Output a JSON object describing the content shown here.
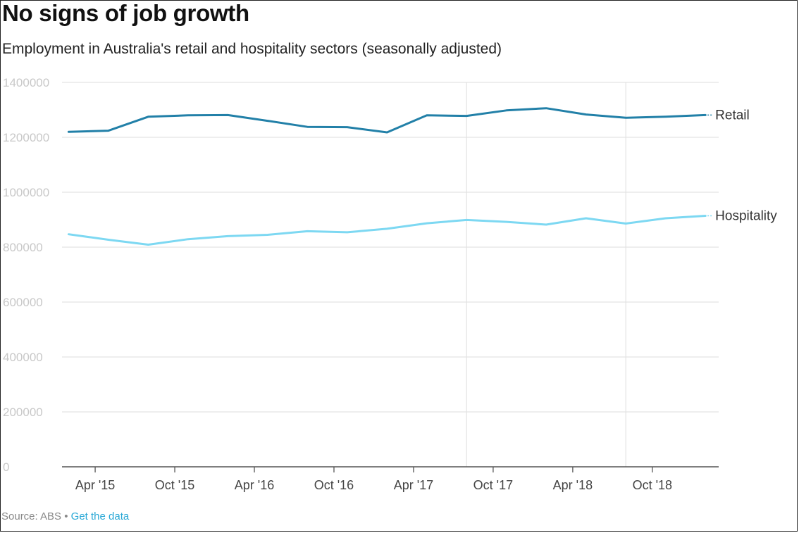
{
  "title": "No signs of job growth",
  "subtitle": "Employment in Australia's retail and hospitality sectors (seasonally adjusted)",
  "source": {
    "label": "Source: ABS",
    "separator": "•",
    "link": "Get the data"
  },
  "colors": {
    "retail": "#2280a8",
    "hospitality": "#7dd8f2",
    "grid": "#e3e3e3",
    "axis": "#555555",
    "tick_text": "#c8c8c8",
    "label_text": "#333333",
    "xtick_text": "#444444",
    "source_link": "#29a8d6"
  },
  "chart_data": {
    "type": "line",
    "title": "No signs of job growth",
    "subtitle": "Employment in Australia's retail and hospitality sectors (seasonally adjusted)",
    "xlabel": "",
    "ylabel": "",
    "ylim": [
      0,
      1400000
    ],
    "y_ticks": [
      0,
      200000,
      400000,
      600000,
      800000,
      1000000,
      1200000,
      1400000
    ],
    "y_tick_labels": [
      "0",
      "200000",
      "400000",
      "600000",
      "800000",
      "1000000",
      "1200000",
      "1400000"
    ],
    "x_tick_labels": [
      "Apr '15",
      "Oct '15",
      "Apr '16",
      "Oct '16",
      "Apr '17",
      "Oct '17",
      "Apr '18",
      "Oct '18"
    ],
    "x_tick_months": [
      1,
      7,
      13,
      19,
      25,
      31,
      37,
      43
    ],
    "x_range_months": [
      -1.5,
      48
    ],
    "vertical_markers_months": [
      29,
      41
    ],
    "x_months": [
      -1,
      2,
      5,
      8,
      11,
      14,
      17,
      20,
      23,
      26,
      29,
      32,
      35,
      38,
      41,
      44,
      47
    ],
    "series": [
      {
        "name": "Retail",
        "values": [
          1220000,
          1224000,
          1275000,
          1280000,
          1281000,
          1260000,
          1238000,
          1237000,
          1218000,
          1280000,
          1278000,
          1298000,
          1306000,
          1283000,
          1271000,
          1275000,
          1281000
        ]
      },
      {
        "name": "Hospitality",
        "values": [
          847000,
          827000,
          809000,
          829000,
          840000,
          845000,
          858000,
          854000,
          867000,
          887000,
          899000,
          892000,
          882000,
          905000,
          886000,
          905000,
          914000
        ]
      }
    ],
    "grid": true,
    "legend": "direct-labels-right"
  }
}
